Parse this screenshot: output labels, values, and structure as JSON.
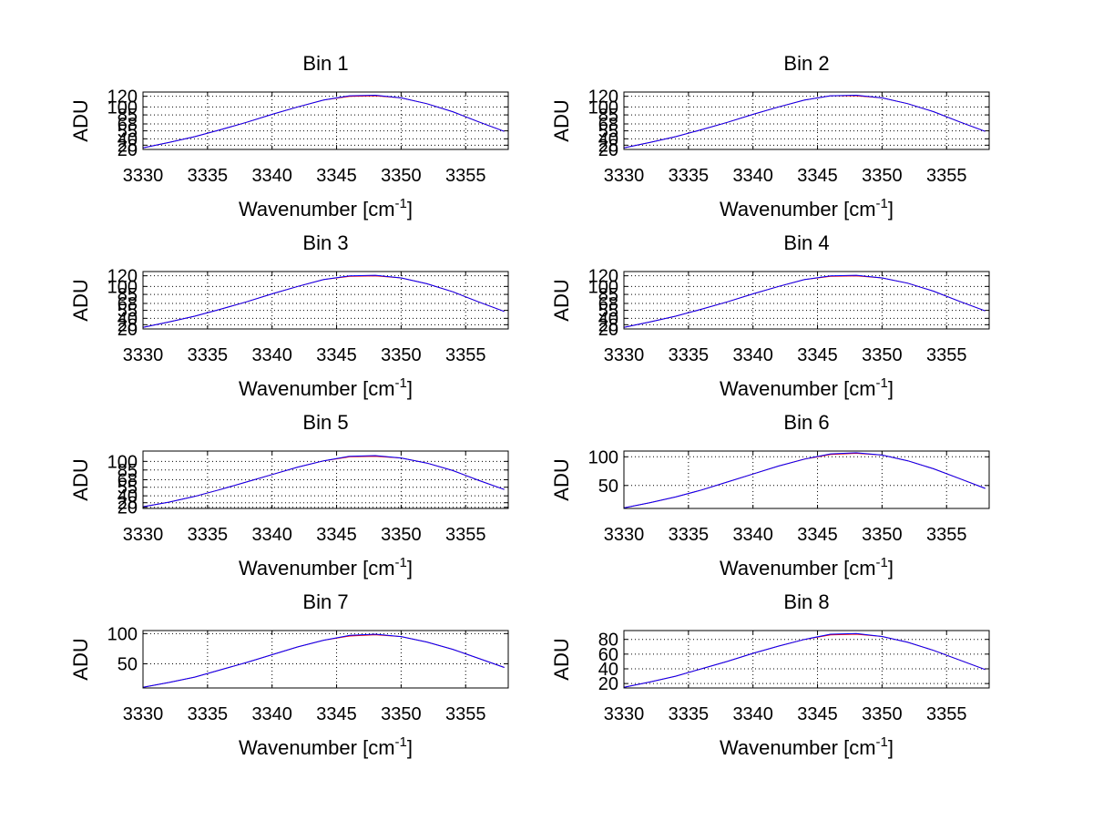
{
  "chart_data": [
    {
      "type": "line",
      "title": "Bin 1",
      "xlabel": "Wavenumber [cm",
      "xlabel_sup": "-1",
      "xlabel_end": "]",
      "ylabel": "ADU",
      "xlim": [
        3330,
        3358.3
      ],
      "ylim": [
        20,
        128
      ],
      "xticks": [
        "3330",
        "3335",
        "3340",
        "3345",
        "3350",
        "3355"
      ],
      "yticks": [
        "20",
        "28",
        "40",
        "55",
        "68",
        "85",
        "100",
        "120"
      ],
      "grid": true,
      "x": [
        3330,
        3332,
        3334,
        3336,
        3338,
        3340,
        3342,
        3344,
        3346,
        3348,
        3350,
        3352,
        3354,
        3356,
        3358
      ],
      "series": [
        {
          "color": "#ff0000",
          "values": [
            23,
            33,
            44,
            57,
            71,
            86,
            100,
            113,
            120,
            121,
            117,
            106,
            91,
            72,
            54
          ]
        },
        {
          "color": "#0000ff",
          "values": [
            23,
            33,
            44,
            57,
            71,
            86,
            100,
            113,
            121,
            122,
            117,
            106,
            91,
            72,
            54
          ]
        }
      ]
    },
    {
      "type": "line",
      "title": "Bin 2",
      "xlabel": "Wavenumber [cm",
      "xlabel_sup": "-1",
      "xlabel_end": "]",
      "ylabel": "ADU",
      "xlim": [
        3330,
        3358.3
      ],
      "ylim": [
        20,
        128
      ],
      "xticks": [
        "3330",
        "3335",
        "3340",
        "3345",
        "3350",
        "3355"
      ],
      "yticks": [
        "20",
        "28",
        "40",
        "55",
        "68",
        "85",
        "100",
        "120"
      ],
      "grid": true,
      "x": [
        3330,
        3332,
        3334,
        3336,
        3338,
        3340,
        3342,
        3344,
        3346,
        3348,
        3350,
        3352,
        3354,
        3356,
        3358
      ],
      "series": [
        {
          "color": "#ff0000",
          "values": [
            23,
            33,
            44,
            57,
            71,
            86,
            100,
            113,
            121,
            121,
            117,
            106,
            91,
            72,
            54
          ]
        },
        {
          "color": "#0000ff",
          "values": [
            23,
            33,
            44,
            57,
            71,
            86,
            100,
            113,
            121,
            122,
            117,
            106,
            91,
            72,
            54
          ]
        }
      ]
    },
    {
      "type": "line",
      "title": "Bin 3",
      "xlabel": "Wavenumber [cm",
      "xlabel_sup": "-1",
      "xlabel_end": "]",
      "ylabel": "ADU",
      "xlim": [
        3330,
        3358.3
      ],
      "ylim": [
        20,
        128
      ],
      "xticks": [
        "3330",
        "3335",
        "3340",
        "3345",
        "3350",
        "3355"
      ],
      "yticks": [
        "20",
        "28",
        "40",
        "55",
        "68",
        "85",
        "100",
        "120"
      ],
      "grid": true,
      "x": [
        3330,
        3332,
        3334,
        3336,
        3338,
        3340,
        3342,
        3344,
        3346,
        3348,
        3350,
        3352,
        3354,
        3356,
        3358
      ],
      "series": [
        {
          "color": "#ff0000",
          "values": [
            23,
            33,
            44,
            57,
            71,
            86,
            100,
            113,
            119,
            120,
            116,
            105,
            90,
            71,
            53
          ]
        },
        {
          "color": "#0000ff",
          "values": [
            23,
            33,
            44,
            57,
            71,
            86,
            100,
            113,
            120,
            121,
            116,
            105,
            90,
            71,
            53
          ]
        }
      ]
    },
    {
      "type": "line",
      "title": "Bin 4",
      "xlabel": "Wavenumber [cm",
      "xlabel_sup": "-1",
      "xlabel_end": "]",
      "ylabel": "ADU",
      "xlim": [
        3330,
        3358.3
      ],
      "ylim": [
        20,
        128
      ],
      "xticks": [
        "3330",
        "3335",
        "3340",
        "3345",
        "3350",
        "3355"
      ],
      "yticks": [
        "20",
        "28",
        "40",
        "55",
        "68",
        "85",
        "100",
        "120"
      ],
      "grid": true,
      "x": [
        3330,
        3332,
        3334,
        3336,
        3338,
        3340,
        3342,
        3344,
        3346,
        3348,
        3350,
        3352,
        3354,
        3356,
        3358
      ],
      "series": [
        {
          "color": "#ff0000",
          "values": [
            23,
            33,
            44,
            57,
            71,
            86,
            100,
            113,
            119,
            120,
            116,
            106,
            91,
            72,
            54
          ]
        },
        {
          "color": "#0000ff",
          "values": [
            23,
            33,
            44,
            57,
            71,
            86,
            100,
            113,
            120,
            121,
            116,
            106,
            91,
            72,
            54
          ]
        }
      ]
    },
    {
      "type": "line",
      "title": "Bin 5",
      "xlabel": "Wavenumber [cm",
      "xlabel_sup": "-1",
      "xlabel_end": "]",
      "ylabel": "ADU",
      "xlim": [
        3330,
        3358.3
      ],
      "ylim": [
        18,
        118
      ],
      "xticks": [
        "3330",
        "3335",
        "3340",
        "3345",
        "3350",
        "3355"
      ],
      "yticks": [
        "20",
        "28",
        "40",
        "55",
        "68",
        "85",
        "100"
      ],
      "grid": true,
      "x": [
        3330,
        3332,
        3334,
        3336,
        3338,
        3340,
        3342,
        3344,
        3346,
        3348,
        3350,
        3352,
        3354,
        3356,
        3358
      ],
      "series": [
        {
          "color": "#ff0000",
          "values": [
            21,
            29,
            39,
            51,
            64,
            77,
            90,
            101,
            108,
            109,
            106,
            97,
            84,
            67,
            51
          ]
        },
        {
          "color": "#0000ff",
          "values": [
            21,
            29,
            39,
            51,
            64,
            77,
            90,
            101,
            109,
            110,
            106,
            97,
            84,
            67,
            51
          ]
        }
      ]
    },
    {
      "type": "line",
      "title": "Bin 6",
      "xlabel": "Wavenumber [cm",
      "xlabel_sup": "-1",
      "xlabel_end": "]",
      "ylabel": "ADU",
      "xlim": [
        3330,
        3358.3
      ],
      "ylim": [
        10,
        110
      ],
      "xticks": [
        "3330",
        "3335",
        "3340",
        "3345",
        "3350",
        "3355"
      ],
      "yticks": [
        "50",
        "100"
      ],
      "grid": true,
      "x": [
        3330,
        3332,
        3334,
        3336,
        3338,
        3340,
        3342,
        3344,
        3346,
        3348,
        3350,
        3352,
        3354,
        3356,
        3358
      ],
      "series": [
        {
          "color": "#ff0000",
          "values": [
            11,
            20,
            30,
            42,
            56,
            70,
            84,
            96,
            104,
            106,
            103,
            93,
            79,
            62,
            45
          ]
        },
        {
          "color": "#0000ff",
          "values": [
            11,
            20,
            30,
            42,
            56,
            70,
            84,
            96,
            105,
            107,
            103,
            93,
            79,
            62,
            45
          ]
        }
      ]
    },
    {
      "type": "line",
      "title": "Bin 7",
      "xlabel": "Wavenumber [cm",
      "xlabel_sup": "-1",
      "xlabel_end": "]",
      "ylabel": "ADU",
      "xlim": [
        3330,
        3358.3
      ],
      "ylim": [
        10,
        105
      ],
      "xticks": [
        "3330",
        "3335",
        "3340",
        "3345",
        "3350",
        "3355"
      ],
      "yticks": [
        "50",
        "100"
      ],
      "grid": true,
      "x": [
        3330,
        3332,
        3334,
        3336,
        3338,
        3340,
        3342,
        3344,
        3346,
        3348,
        3350,
        3352,
        3354,
        3356,
        3358
      ],
      "series": [
        {
          "color": "#ff0000",
          "values": [
            11,
            19,
            28,
            40,
            52,
            65,
            78,
            89,
            96,
            98,
            95,
            86,
            74,
            59,
            44
          ]
        },
        {
          "color": "#0000ff",
          "values": [
            11,
            19,
            28,
            40,
            52,
            65,
            78,
            89,
            97,
            99,
            95,
            86,
            74,
            59,
            44
          ]
        }
      ]
    },
    {
      "type": "line",
      "title": "Bin 8",
      "xlabel": "Wavenumber [cm",
      "xlabel_sup": "-1",
      "xlabel_end": "]",
      "ylabel": "ADU",
      "xlim": [
        3330,
        3358.3
      ],
      "ylim": [
        14,
        92
      ],
      "xticks": [
        "3330",
        "3335",
        "3340",
        "3345",
        "3350",
        "3355"
      ],
      "yticks": [
        "20",
        "40",
        "60",
        "80"
      ],
      "grid": true,
      "x": [
        3330,
        3332,
        3334,
        3336,
        3338,
        3340,
        3342,
        3344,
        3346,
        3348,
        3350,
        3352,
        3354,
        3356,
        3358
      ],
      "series": [
        {
          "color": "#ff0000",
          "values": [
            15,
            22,
            30,
            40,
            50,
            61,
            71,
            80,
            86,
            87,
            84,
            76,
            65,
            52,
            39
          ]
        },
        {
          "color": "#0000ff",
          "values": [
            15,
            22,
            30,
            40,
            50,
            61,
            71,
            80,
            87,
            88,
            84,
            76,
            65,
            52,
            39
          ]
        }
      ]
    }
  ]
}
